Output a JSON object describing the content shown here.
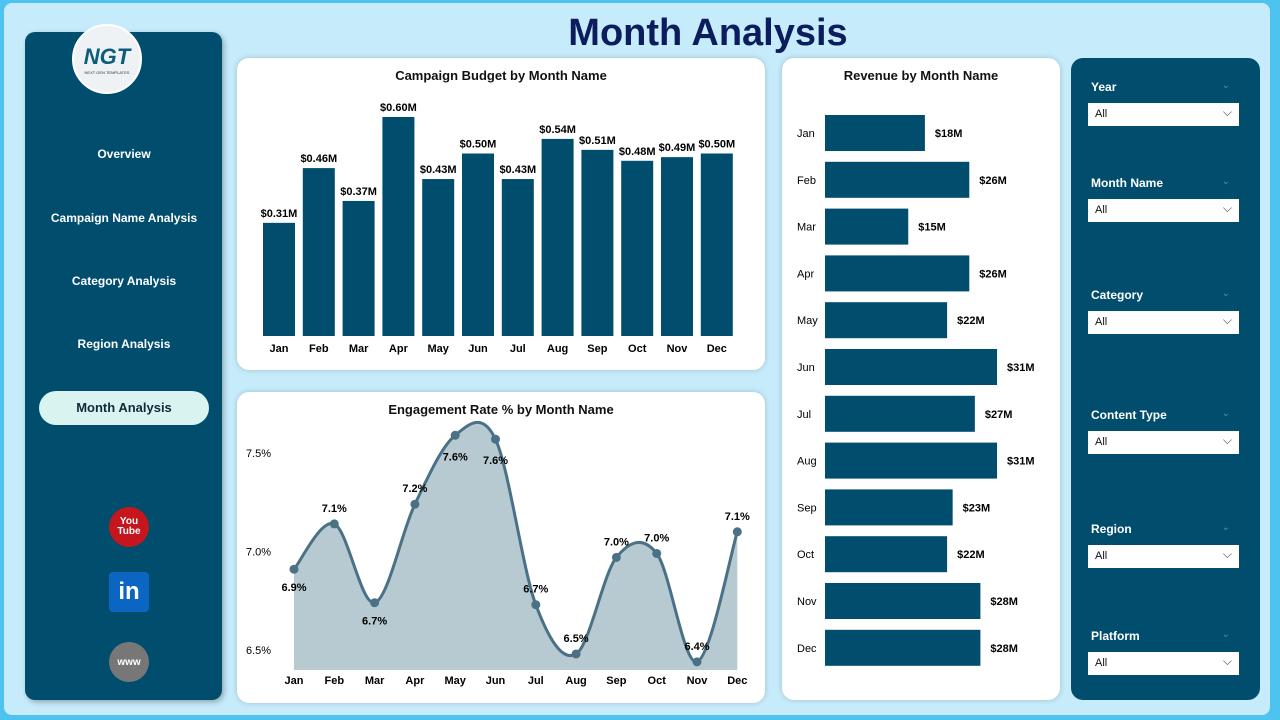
{
  "title": "Month Analysis",
  "logo": {
    "text": "NGT",
    "subtitle": "NEXT GEN TEMPLATES"
  },
  "nav": [
    {
      "label": "Overview"
    },
    {
      "label": "Campaign Name Analysis"
    },
    {
      "label": "Category Analysis"
    },
    {
      "label": "Region Analysis"
    },
    {
      "label": "Month Analysis",
      "active": true
    }
  ],
  "social": [
    {
      "icon": "youtube-icon",
      "text": "You Tube"
    },
    {
      "icon": "linkedin-icon",
      "text": "in"
    },
    {
      "icon": "globe-www-icon",
      "text": "www"
    }
  ],
  "colors": {
    "bar": "#014d6e",
    "line": "#4a7185",
    "area": "#b7c9d1",
    "panel": "#014d6e"
  },
  "chart_data": [
    {
      "type": "bar",
      "title": "Campaign Budget by Month Name",
      "categories": [
        "Jan",
        "Feb",
        "Mar",
        "Apr",
        "May",
        "Jun",
        "Jul",
        "Aug",
        "Sep",
        "Oct",
        "Nov",
        "Dec"
      ],
      "values": [
        0.31,
        0.46,
        0.37,
        0.6,
        0.43,
        0.5,
        0.43,
        0.54,
        0.51,
        0.48,
        0.49,
        0.5
      ],
      "labels": [
        "$0.31M",
        "$0.46M",
        "$0.37M",
        "$0.60M",
        "$0.43M",
        "$0.50M",
        "$0.43M",
        "$0.54M",
        "$0.51M",
        "$0.48M",
        "$0.49M",
        "$0.50M"
      ],
      "ylim": [
        0,
        0.6
      ]
    },
    {
      "type": "area",
      "title": "Engagement Rate % by Month Name",
      "categories": [
        "Jan",
        "Feb",
        "Mar",
        "Apr",
        "May",
        "Jun",
        "Jul",
        "Aug",
        "Sep",
        "Oct",
        "Nov",
        "Dec"
      ],
      "values": [
        6.91,
        7.14,
        6.74,
        7.24,
        7.59,
        7.57,
        6.73,
        6.48,
        6.97,
        6.99,
        6.44,
        7.1
      ],
      "labels": [
        "6.9%",
        "7.1%",
        "6.7%",
        "7.2%",
        "7.6%",
        "7.6%",
        "6.7%",
        "6.5%",
        "7.0%",
        "7.0%",
        "6.4%",
        "7.1%"
      ],
      "yticks": [
        "6.5%",
        "7.0%",
        "7.5%"
      ],
      "ylim": [
        6.4,
        7.6
      ]
    },
    {
      "type": "bar",
      "orientation": "horizontal",
      "title": "Revenue by Month Name",
      "categories": [
        "Jan",
        "Feb",
        "Mar",
        "Apr",
        "May",
        "Jun",
        "Jul",
        "Aug",
        "Sep",
        "Oct",
        "Nov",
        "Dec"
      ],
      "values": [
        18,
        26,
        15,
        26,
        22,
        31,
        27,
        31,
        23,
        22,
        28,
        28
      ],
      "labels": [
        "$18M",
        "$26M",
        "$15M",
        "$26M",
        "$22M",
        "$31M",
        "$27M",
        "$31M",
        "$23M",
        "$22M",
        "$28M",
        "$28M"
      ]
    }
  ],
  "filters": [
    {
      "label": "Year",
      "value": "All"
    },
    {
      "label": "Month Name",
      "value": "All"
    },
    {
      "label": "Category",
      "value": "All"
    },
    {
      "label": "Content Type",
      "value": "All"
    },
    {
      "label": "Region",
      "value": "All"
    },
    {
      "label": "Platform",
      "value": "All"
    }
  ]
}
